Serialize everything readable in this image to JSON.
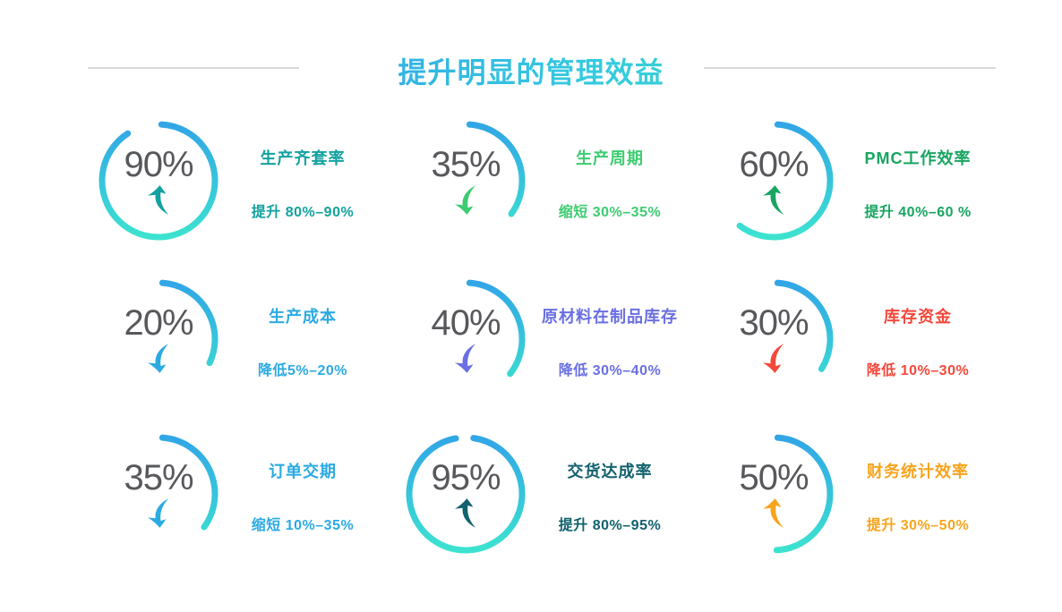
{
  "header": {
    "title": "提升明显的管理效益",
    "title_gradient": [
      "#2E9BE8",
      "#35C9E0",
      "#3FE3B4"
    ],
    "divider_color": "#D9D9D9"
  },
  "gauge_style": {
    "arc_gradient_top": "#31A3E8",
    "arc_gradient_bottom": "#3DE6CE",
    "percent_text_color": "#57585B"
  },
  "items": [
    {
      "value": "90%",
      "title": "生产齐套率",
      "desc": "提升 80%–90%",
      "trend": "up",
      "color": "#12A1A0",
      "arc": {
        "start": 3,
        "sweep": 324
      }
    },
    {
      "value": "35%",
      "title": "生产周期",
      "desc": "缩短 30%–35%",
      "trend": "down",
      "color": "#3DCC71",
      "arc": {
        "start": 4,
        "sweep": 122
      }
    },
    {
      "value": "60%",
      "title": "PMC工作效率",
      "desc": "提升 40%–60 %",
      "trend": "up",
      "color": "#18A561",
      "arc": {
        "start": 4,
        "sweep": 213
      }
    },
    {
      "value": "20%",
      "title": "生产成本",
      "desc": "降低5%–20%",
      "trend": "down",
      "color": "#2BAAE2",
      "arc": {
        "start": 4,
        "sweep": 111
      }
    },
    {
      "value": "40%",
      "title": "原材料在制品库存",
      "desc": "降低 30%–40%",
      "trend": "down",
      "color": "#6A6FE2",
      "arc": {
        "start": 4,
        "sweep": 124
      }
    },
    {
      "value": "30%",
      "title": "库存资金",
      "desc": "降低 10%–30%",
      "trend": "down",
      "color": "#F4483B",
      "arc": {
        "start": 4,
        "sweep": 118
      }
    },
    {
      "value": "35%",
      "title": "订单交期",
      "desc": "缩短 10%–35%",
      "trend": "down",
      "color": "#2BAAE2",
      "arc": {
        "start": 4,
        "sweep": 122
      }
    },
    {
      "value": "95%",
      "title": "交货达成率",
      "desc": "提升 80%–95%",
      "trend": "up",
      "color": "#11616E",
      "arc": {
        "start": 8,
        "sweep": 342
      }
    },
    {
      "value": "50%",
      "title": "财务统计效率",
      "desc": "提升 30%–50%",
      "trend": "up",
      "color": "#F8A41D",
      "arc": {
        "start": 4,
        "sweep": 173
      }
    }
  ],
  "chart_data": {
    "type": "gauge",
    "title": "提升明显的管理效益",
    "layout": "3x3 grid of circular arc gauges, value and trend arrow inside circle, metric name and change range to the right",
    "gauges": [
      {
        "metric": "生产齐套率",
        "value_pct": 90,
        "change": "提升 80%–90%",
        "trend": "up"
      },
      {
        "metric": "生产周期",
        "value_pct": 35,
        "change": "缩短 30%–35%",
        "trend": "down"
      },
      {
        "metric": "PMC工作效率",
        "value_pct": 60,
        "change": "提升 40%–60 %",
        "trend": "up"
      },
      {
        "metric": "生产成本",
        "value_pct": 20,
        "change": "降低5%–20%",
        "trend": "down"
      },
      {
        "metric": "原材料在制品库存",
        "value_pct": 40,
        "change": "降低 30%–40%",
        "trend": "down"
      },
      {
        "metric": "库存资金",
        "value_pct": 30,
        "change": "降低 10%–30%",
        "trend": "down"
      },
      {
        "metric": "订单交期",
        "value_pct": 35,
        "change": "缩短 10%–35%",
        "trend": "down"
      },
      {
        "metric": "交货达成率",
        "value_pct": 95,
        "change": "提升 80%–95%",
        "trend": "up"
      },
      {
        "metric": "财务统计效率",
        "value_pct": 50,
        "change": "提升 30%–50%",
        "trend": "up"
      }
    ]
  }
}
